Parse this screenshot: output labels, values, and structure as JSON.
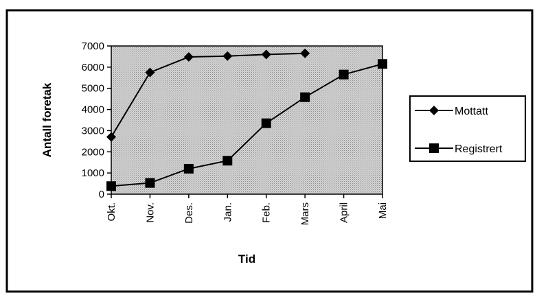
{
  "chart_data": {
    "type": "line",
    "categories": [
      "Okt.",
      "Nov.",
      "Des.",
      "Jan.",
      "Feb.",
      "Mars",
      "April",
      "Mai"
    ],
    "series": [
      {
        "name": "Mottatt",
        "marker": "diamond",
        "values": [
          2700,
          5750,
          6480,
          6520,
          6600,
          6650,
          null,
          null
        ]
      },
      {
        "name": "Registrert",
        "marker": "square",
        "values": [
          380,
          530,
          1200,
          1580,
          3350,
          4580,
          5650,
          6150
        ]
      }
    ],
    "title": "",
    "xlabel": "Tid",
    "ylabel": "Antall foretak",
    "ylim": [
      0,
      7000
    ],
    "yticks": [
      0,
      1000,
      2000,
      3000,
      4000,
      5000,
      6000,
      7000
    ],
    "grid": false,
    "legend_position": "right",
    "colors": {
      "plot_background": "#c8c8c8",
      "line": "#000000",
      "frame": "#000000"
    }
  }
}
